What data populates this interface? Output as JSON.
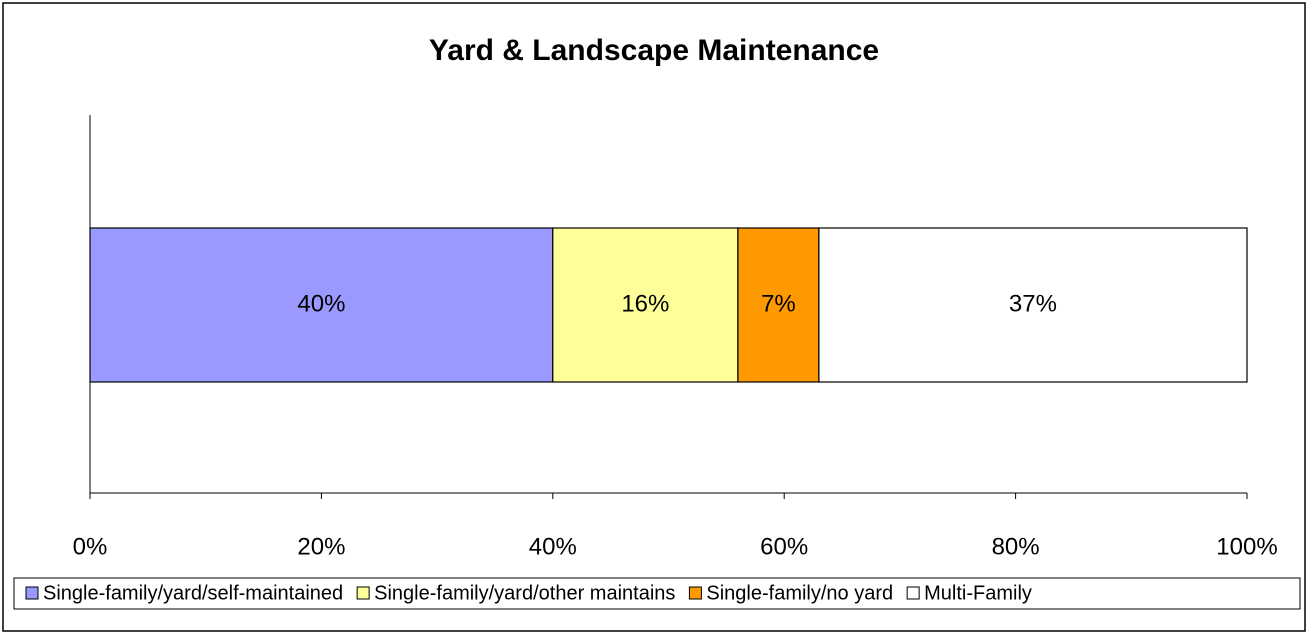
{
  "chart_data": {
    "type": "stacked_barh",
    "title": "Yard & Landscape Maintenance",
    "series": [
      {
        "name": "Single-family/yard/self-maintained",
        "color": "#9999ff",
        "values": [
          40
        ],
        "value_labels": [
          "40%"
        ]
      },
      {
        "name": "Single-family/yard/other maintains",
        "color": "#ffff99",
        "values": [
          16
        ],
        "value_labels": [
          "16%"
        ]
      },
      {
        "name": "Single-family/no yard",
        "color": "#ff9900",
        "values": [
          7
        ],
        "value_labels": [
          "7%"
        ]
      },
      {
        "name": "Multi-Family",
        "color": "#ffffff",
        "values": [
          37
        ],
        "value_labels": [
          "37%"
        ]
      }
    ],
    "xlim": [
      0,
      100
    ],
    "xticks": [
      {
        "value": 0,
        "label": "0%"
      },
      {
        "value": 20,
        "label": "20%"
      },
      {
        "value": 40,
        "label": "40%"
      },
      {
        "value": 60,
        "label": "60%"
      },
      {
        "value": 80,
        "label": "80%"
      },
      {
        "value": 100,
        "label": "100%"
      }
    ],
    "legend": "bottom"
  }
}
